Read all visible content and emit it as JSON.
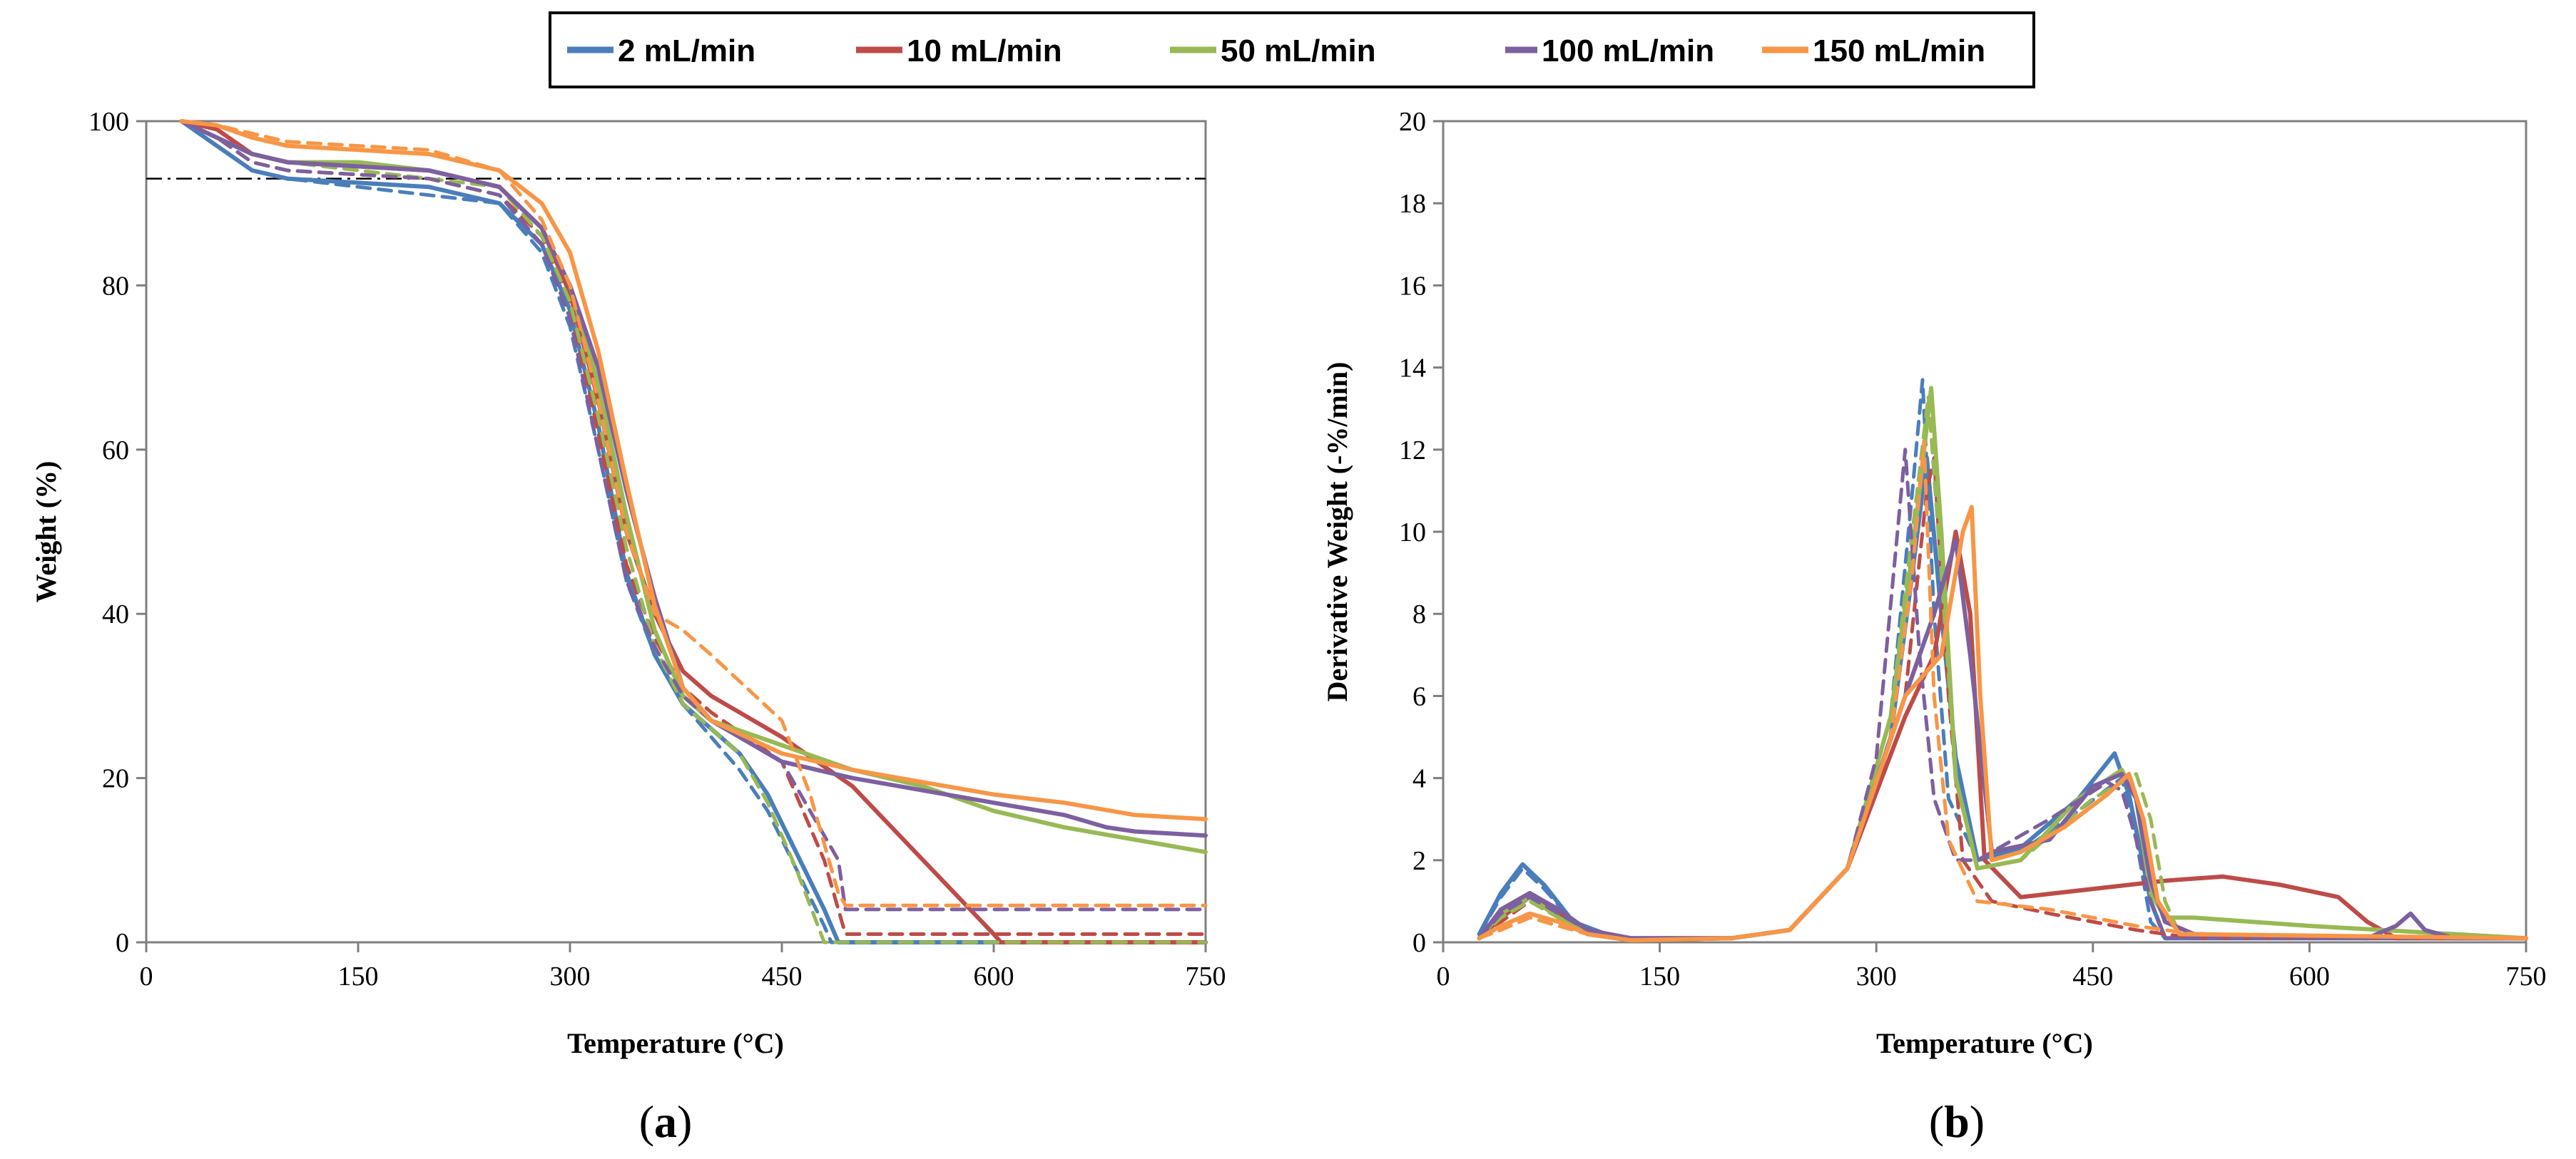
{
  "colors": {
    "2 mL/min": "#4A7EBB",
    "10 mL/min": "#BE4B48",
    "50 mL/min": "#98B954",
    "100 mL/min": "#7D60A0",
    "150 mL/min": "#F79646"
  },
  "legend": {
    "entries": [
      "2 mL/min",
      "10 mL/min",
      "50 mL/min",
      "100 mL/min",
      "150 mL/min"
    ]
  },
  "panels": {
    "a": {
      "label_open": "(",
      "label_letter": "a",
      "label_close": ")"
    },
    "b": {
      "label_open": "(",
      "label_letter": "b",
      "label_close": ")"
    }
  },
  "chart_data": [
    {
      "id": "a",
      "type": "line",
      "title": "",
      "xlabel": "Temperature (°C)",
      "ylabel": "Weight (%)",
      "xlim": [
        0,
        750
      ],
      "ylim": [
        0,
        100
      ],
      "xticks": [
        0,
        150,
        300,
        450,
        600,
        750
      ],
      "yticks": [
        0,
        20,
        40,
        60,
        80,
        100
      ],
      "reference_line": {
        "y": 93,
        "style": "dash-dot"
      },
      "series": [
        {
          "name": "2 mL/min",
          "style": "solid",
          "x": [
            25,
            50,
            75,
            100,
            150,
            200,
            250,
            280,
            300,
            320,
            340,
            360,
            380,
            400,
            420,
            440,
            460,
            480,
            490,
            495,
            750
          ],
          "y": [
            100,
            97,
            94,
            93,
            92.5,
            92,
            90,
            85,
            77,
            63,
            45,
            35,
            29,
            26,
            23,
            18,
            11,
            4,
            0,
            0,
            0
          ]
        },
        {
          "name": "2 mL/min",
          "style": "dashed",
          "x": [
            25,
            50,
            75,
            100,
            150,
            200,
            250,
            280,
            300,
            320,
            340,
            360,
            380,
            400,
            420,
            440,
            460,
            480,
            485,
            750
          ],
          "y": [
            100,
            97,
            94,
            93,
            92,
            91,
            90,
            84,
            75,
            60,
            44,
            35,
            29,
            25,
            21,
            16,
            9,
            2,
            0,
            0
          ]
        },
        {
          "name": "10 mL/min",
          "style": "solid",
          "x": [
            25,
            50,
            75,
            100,
            150,
            200,
            250,
            280,
            300,
            320,
            340,
            360,
            380,
            400,
            450,
            500,
            550,
            600,
            605,
            750
          ],
          "y": [
            100,
            99,
            96,
            95,
            94.5,
            94,
            92,
            87,
            79,
            66,
            50,
            40,
            33,
            30,
            25,
            19,
            10,
            1,
            0,
            0
          ]
        },
        {
          "name": "10 mL/min",
          "style": "dashed",
          "x": [
            25,
            50,
            75,
            100,
            150,
            200,
            250,
            280,
            300,
            320,
            340,
            360,
            380,
            400,
            450,
            480,
            495,
            750
          ],
          "y": [
            100,
            98,
            95,
            94,
            93.5,
            93,
            91,
            86,
            78,
            62,
            46,
            37,
            31,
            28,
            22,
            10,
            1,
            1
          ]
        },
        {
          "name": "50 mL/min",
          "style": "solid",
          "x": [
            25,
            50,
            75,
            100,
            150,
            200,
            250,
            280,
            300,
            320,
            340,
            360,
            380,
            400,
            450,
            500,
            550,
            600,
            650,
            700,
            750
          ],
          "y": [
            100,
            98,
            96,
            95,
            95,
            94,
            92,
            87,
            80,
            68,
            52,
            38,
            30,
            27,
            24,
            21,
            19,
            16,
            14,
            12.5,
            11
          ]
        },
        {
          "name": "50 mL/min",
          "style": "dashed",
          "x": [
            25,
            50,
            75,
            100,
            150,
            200,
            250,
            280,
            300,
            320,
            340,
            360,
            380,
            400,
            420,
            440,
            460,
            480,
            750
          ],
          "y": [
            100,
            98,
            96,
            95,
            94,
            93,
            92,
            86,
            78,
            64,
            48,
            36,
            29,
            26,
            23,
            17,
            9,
            0,
            0
          ]
        },
        {
          "name": "100 mL/min",
          "style": "solid",
          "x": [
            25,
            50,
            75,
            100,
            150,
            200,
            250,
            280,
            300,
            320,
            340,
            360,
            380,
            400,
            450,
            500,
            550,
            600,
            650,
            680,
            700,
            750
          ],
          "y": [
            100,
            98,
            96,
            95,
            94.5,
            94,
            92,
            87,
            80,
            70,
            55,
            42,
            31,
            27,
            22,
            20,
            18.5,
            17,
            15.5,
            14,
            13.5,
            13
          ]
        },
        {
          "name": "100 mL/min",
          "style": "dashed",
          "x": [
            25,
            50,
            75,
            100,
            150,
            200,
            250,
            280,
            300,
            320,
            340,
            360,
            380,
            400,
            450,
            490,
            495,
            750
          ],
          "y": [
            100,
            98,
            95,
            94,
            93.5,
            93,
            91,
            85,
            76,
            60,
            44,
            36,
            30,
            27,
            22,
            10,
            4,
            4
          ]
        },
        {
          "name": "150 mL/min",
          "style": "solid",
          "x": [
            25,
            50,
            75,
            100,
            150,
            200,
            250,
            280,
            300,
            320,
            340,
            360,
            380,
            400,
            450,
            500,
            550,
            600,
            650,
            700,
            750
          ],
          "y": [
            100,
            99.5,
            98,
            97,
            96.5,
            96,
            94,
            90,
            84,
            72,
            56,
            41,
            31,
            27,
            23,
            21,
            19.5,
            18,
            17,
            15.5,
            15
          ]
        },
        {
          "name": "150 mL/min",
          "style": "dashed",
          "x": [
            25,
            50,
            75,
            100,
            150,
            200,
            250,
            280,
            300,
            320,
            340,
            360,
            380,
            400,
            450,
            470,
            490,
            495,
            750
          ],
          "y": [
            100,
            99.5,
            98.5,
            97.5,
            97,
            96.5,
            94,
            88,
            80,
            66,
            50,
            40,
            38,
            35,
            27,
            18,
            6,
            4.5,
            4.5
          ]
        }
      ]
    },
    {
      "id": "b",
      "type": "line",
      "title": "",
      "xlabel": "Temperature (°C)",
      "ylabel": "Derivative Weight (-%/min)",
      "xlim": [
        0,
        750
      ],
      "ylim": [
        0,
        20
      ],
      "xticks": [
        0,
        150,
        300,
        450,
        600,
        750
      ],
      "yticks": [
        0,
        2,
        4,
        6,
        8,
        10,
        12,
        14,
        16,
        18,
        20
      ],
      "series": [
        {
          "name": "2 mL/min",
          "style": "solid",
          "x": [
            25,
            40,
            55,
            70,
            90,
            120,
            200,
            240,
            280,
            310,
            325,
            335,
            345,
            355,
            370,
            400,
            440,
            465,
            475,
            490,
            500,
            750
          ],
          "y": [
            0.2,
            1.2,
            1.9,
            1.4,
            0.5,
            0.1,
            0.1,
            0.3,
            1.8,
            5,
            9,
            11.8,
            8,
            4.5,
            2,
            2.3,
            3.5,
            4.6,
            3.6,
            1,
            0.1,
            0.1
          ]
        },
        {
          "name": "2 mL/min",
          "style": "dashed",
          "x": [
            25,
            40,
            55,
            70,
            90,
            120,
            200,
            240,
            280,
            310,
            325,
            332,
            340,
            350,
            370,
            400,
            440,
            470,
            480,
            490,
            500,
            750
          ],
          "y": [
            0.2,
            1.1,
            1.8,
            1.3,
            0.5,
            0.1,
            0.1,
            0.3,
            1.8,
            5.5,
            11,
            13.7,
            8,
            3.5,
            2,
            2.2,
            3.2,
            4,
            2.5,
            0.5,
            0.1,
            0.1
          ]
        },
        {
          "name": "10 mL/min",
          "style": "solid",
          "x": [
            25,
            40,
            60,
            80,
            100,
            130,
            200,
            240,
            280,
            320,
            340,
            355,
            365,
            375,
            400,
            450,
            500,
            540,
            580,
            620,
            640,
            660,
            750
          ],
          "y": [
            0.1,
            0.6,
            1.1,
            0.7,
            0.2,
            0.05,
            0.1,
            0.3,
            1.8,
            5.5,
            7,
            10,
            8,
            2,
            1.1,
            1.3,
            1.5,
            1.6,
            1.4,
            1.1,
            0.5,
            0.1,
            0.1
          ]
        },
        {
          "name": "10 mL/min",
          "style": "dashed",
          "x": [
            25,
            40,
            60,
            80,
            100,
            130,
            200,
            240,
            280,
            320,
            335,
            340,
            350,
            360,
            380,
            420,
            480,
            520,
            750
          ],
          "y": [
            0.1,
            0.5,
            1,
            0.6,
            0.2,
            0.05,
            0.1,
            0.3,
            1.8,
            6,
            11,
            11.8,
            6,
            2,
            1,
            0.7,
            0.3,
            0.1,
            0.1
          ]
        },
        {
          "name": "50 mL/min",
          "style": "solid",
          "x": [
            25,
            40,
            60,
            80,
            100,
            130,
            200,
            240,
            280,
            310,
            325,
            338,
            345,
            355,
            370,
            400,
            440,
            470,
            480,
            490,
            500,
            520,
            600,
            700,
            750
          ],
          "y": [
            0.1,
            0.7,
            1.1,
            0.6,
            0.2,
            0.05,
            0.1,
            0.3,
            1.8,
            5.5,
            9.5,
            13.5,
            10,
            4,
            1.8,
            2,
            3.5,
            4.2,
            3.5,
            1.2,
            0.6,
            0.6,
            0.4,
            0.2,
            0.1
          ]
        },
        {
          "name": "50 mL/min",
          "style": "dashed",
          "x": [
            25,
            40,
            60,
            80,
            100,
            130,
            200,
            240,
            280,
            310,
            325,
            336,
            345,
            355,
            370,
            400,
            450,
            480,
            490,
            500,
            510,
            750
          ],
          "y": [
            0.1,
            0.6,
            1,
            0.6,
            0.2,
            0.05,
            0.1,
            0.3,
            1.8,
            5.5,
            10,
            13.3,
            9,
            4,
            1.8,
            2,
            3.5,
            4.1,
            3,
            1,
            0.2,
            0.1
          ]
        },
        {
          "name": "100 mL/min",
          "style": "solid",
          "x": [
            25,
            40,
            60,
            80,
            100,
            130,
            200,
            240,
            280,
            320,
            340,
            355,
            365,
            380,
            420,
            450,
            470,
            480,
            490,
            500,
            520,
            640,
            660,
            670,
            680,
            700,
            750
          ],
          "y": [
            0.1,
            0.8,
            1.2,
            0.8,
            0.3,
            0.1,
            0.1,
            0.3,
            1.8,
            6,
            8,
            9.8,
            7,
            2.2,
            2.5,
            3.8,
            4.1,
            3.5,
            1.5,
            0.5,
            0.2,
            0.1,
            0.4,
            0.7,
            0.3,
            0.1,
            0.1
          ]
        },
        {
          "name": "100 mL/min",
          "style": "dashed",
          "x": [
            25,
            40,
            60,
            80,
            100,
            130,
            200,
            240,
            280,
            300,
            312,
            320,
            330,
            340,
            355,
            370,
            420,
            460,
            470,
            480,
            490,
            500,
            750
          ],
          "y": [
            0.1,
            0.7,
            1.1,
            0.7,
            0.3,
            0.1,
            0.1,
            0.3,
            1.8,
            4.5,
            9,
            12,
            7,
            3.5,
            2,
            2,
            3,
            3.9,
            3.7,
            2.5,
            1,
            0.1,
            0.1
          ]
        },
        {
          "name": "150 mL/min",
          "style": "solid",
          "x": [
            25,
            40,
            60,
            80,
            100,
            130,
            200,
            240,
            280,
            320,
            345,
            360,
            366,
            372,
            380,
            400,
            430,
            460,
            475,
            485,
            495,
            510,
            750
          ],
          "y": [
            0.1,
            0.4,
            0.7,
            0.5,
            0.2,
            0.05,
            0.1,
            0.3,
            1.8,
            6,
            7,
            10,
            10.6,
            6,
            2,
            2.2,
            2.8,
            3.6,
            4.1,
            3,
            1,
            0.2,
            0.1
          ]
        },
        {
          "name": "150 mL/min",
          "style": "dashed",
          "x": [
            25,
            40,
            60,
            80,
            100,
            130,
            200,
            240,
            280,
            310,
            325,
            333,
            340,
            350,
            370,
            420,
            480,
            520,
            750
          ],
          "y": [
            0.1,
            0.3,
            0.6,
            0.4,
            0.2,
            0.05,
            0.1,
            0.3,
            1.8,
            5,
            9,
            12.2,
            6,
            2.5,
            1,
            0.8,
            0.4,
            0.2,
            0.1
          ]
        }
      ]
    }
  ]
}
